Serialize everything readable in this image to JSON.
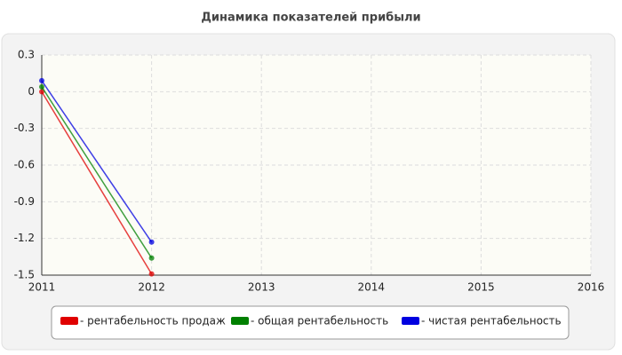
{
  "chart_data": {
    "type": "line",
    "title": "Динамика показателей прибыли",
    "x": [
      2011,
      2012
    ],
    "series": [
      {
        "name": "- рентабельность продаж",
        "color": "#e00000",
        "values": [
          0.0,
          -1.49
        ]
      },
      {
        "name": "- общая рентабельность",
        "color": "#008000",
        "values": [
          0.04,
          -1.36
        ]
      },
      {
        "name": "- чистая рентабельность",
        "color": "#0000e0",
        "values": [
          0.09,
          -1.23
        ]
      }
    ],
    "xlim": [
      2011,
      2016
    ],
    "xticks": [
      2011,
      2012,
      2013,
      2014,
      2015,
      2016
    ],
    "ylim": [
      -1.5,
      0.3
    ],
    "yticks": [
      -1.5,
      -1.2,
      -0.9,
      -0.6,
      -0.3,
      0,
      0.3
    ],
    "grid": true,
    "legend": "bottom"
  }
}
